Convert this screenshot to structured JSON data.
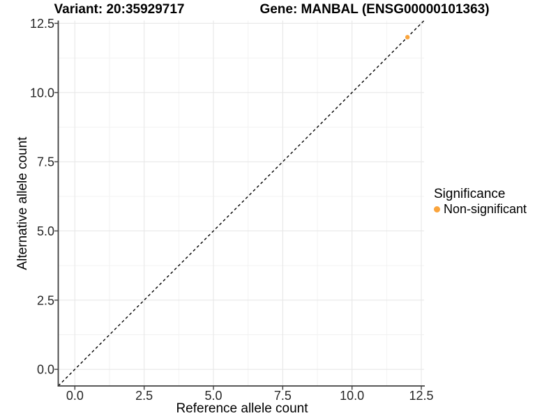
{
  "chart_data": {
    "type": "scatter",
    "title_left": "Variant: 20:35929717",
    "title_right": "Gene: MANBAL (ENSG00000101363)",
    "xlabel": "Reference allele count",
    "ylabel": "Alternative allele count",
    "xlim": [
      -0.6,
      12.6
    ],
    "ylim": [
      -0.6,
      12.6
    ],
    "xticks": {
      "values": [
        0,
        2.5,
        5,
        7.5,
        10,
        12.5
      ],
      "labels": [
        "0.0",
        "2.5",
        "5.0",
        "7.5",
        "10.0",
        "12.5"
      ]
    },
    "yticks": {
      "values": [
        0,
        2.5,
        5,
        7.5,
        10,
        12.5
      ],
      "labels": [
        "0.0",
        "2.5",
        "5.0",
        "7.5",
        "10.0",
        "12.5"
      ]
    },
    "minor_ticks": [
      1.25,
      3.75,
      6.25,
      8.75,
      11.25
    ],
    "grid": "major+minor",
    "identity_line": {
      "slope": 1,
      "intercept": 0,
      "style": "dashed",
      "color": "#000000"
    },
    "series": [
      {
        "name": "Non-significant",
        "color": "#FAA43C",
        "points": [
          {
            "x": 12,
            "y": 12
          }
        ]
      }
    ],
    "legend": {
      "title": "Significance",
      "position": "right",
      "items": [
        {
          "label": "Non-significant",
          "color": "#FAA43C"
        }
      ]
    }
  }
}
